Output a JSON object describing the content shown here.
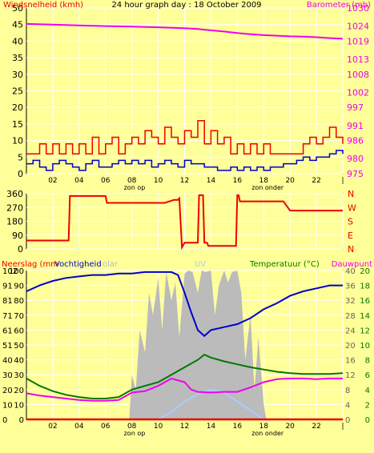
{
  "colors": {
    "background": "#FFFF99",
    "plot_background": "#FFFF99",
    "grid": "#FFFFFF",
    "wind": "#0000CC",
    "gust": "#EE0000",
    "barometer": "#EE00EE",
    "direction": "#EE0000",
    "humidity": "#0000CC",
    "solar": "#BBBBBB",
    "uv": "#AACCFF",
    "temperature": "#007700",
    "dewpoint": "#EE00EE",
    "rain": "#EE0000"
  },
  "chart_data": [
    {
      "id": "wind-baro",
      "type": "line",
      "title": "24 hour graph day : 18 October 2009",
      "left_axis_label": "Windsnelheid (kmh)",
      "right_axis_label": "Barometer (mb)",
      "x_range": [
        0,
        24
      ],
      "x_ticks": [
        "02",
        "04",
        "06",
        "08",
        "10",
        "12",
        "14",
        "16",
        "18",
        "20",
        "22",
        "|"
      ],
      "x_annotations": [
        {
          "label": "zon op",
          "x": 8.2
        },
        {
          "label": "zon onder",
          "x": 18.3
        }
      ],
      "left_range": [
        0,
        50
      ],
      "left_ticks": [
        0,
        5,
        10,
        15,
        20,
        25,
        30,
        35,
        40,
        45,
        50
      ],
      "right_range": [
        975,
        1030
      ],
      "right_ticks": [
        975,
        980,
        986,
        991,
        997,
        1002,
        1008,
        1013,
        1019,
        1024,
        1030
      ],
      "series": [
        {
          "key": "baro",
          "axis": "right",
          "x": [
            0,
            2,
            4,
            6,
            8,
            10,
            12,
            13,
            14,
            15,
            16,
            17,
            18,
            19,
            20,
            21,
            22,
            23,
            24
          ],
          "values": [
            1024.7,
            1024.5,
            1024.2,
            1024.0,
            1023.8,
            1023.6,
            1023.3,
            1023.0,
            1022.6,
            1022.2,
            1021.7,
            1021.3,
            1021.0,
            1020.8,
            1020.6,
            1020.5,
            1020.3,
            1020.0,
            1019.8
          ]
        },
        {
          "key": "wind",
          "axis": "left",
          "x": [
            0,
            0.5,
            1,
            1.5,
            2,
            2.5,
            3,
            3.5,
            4,
            4.5,
            5,
            5.5,
            6,
            6.5,
            7,
            7.5,
            8,
            8.5,
            9,
            9.5,
            10,
            10.5,
            11,
            11.5,
            12,
            12.5,
            13,
            13.5,
            14,
            14.5,
            15,
            15.5,
            16,
            16.5,
            17,
            17.5,
            18,
            18.5,
            19,
            19.5,
            20,
            20.5,
            21,
            21.5,
            22,
            22.5,
            23,
            23.5,
            24
          ],
          "values": [
            3,
            4,
            2,
            1,
            3,
            4,
            3,
            2,
            1,
            3,
            4,
            2,
            2,
            3,
            4,
            3,
            4,
            3,
            4,
            2,
            3,
            4,
            3,
            2,
            4,
            3,
            3,
            2,
            2,
            1,
            1,
            2,
            1,
            2,
            1,
            2,
            1,
            2,
            2,
            3,
            3,
            4,
            5,
            4,
            5,
            5,
            6,
            7,
            6
          ]
        },
        {
          "key": "gust",
          "axis": "left",
          "x": [
            0,
            0.5,
            1,
            1.5,
            2,
            2.5,
            3,
            3.5,
            4,
            4.5,
            5,
            5.5,
            6,
            6.5,
            7,
            7.5,
            8,
            8.5,
            9,
            9.5,
            10,
            10.5,
            11,
            11.5,
            12,
            12.5,
            13,
            13.5,
            14,
            14.5,
            15,
            15.5,
            16,
            16.5,
            17,
            17.5,
            18,
            18.5,
            19,
            19.5,
            20,
            20.5,
            21,
            21.5,
            22,
            22.5,
            23,
            23.5,
            24
          ],
          "values": [
            6,
            6,
            9,
            6,
            9,
            6,
            9,
            6,
            9,
            6,
            11,
            6,
            9,
            11,
            6,
            9,
            11,
            9,
            13,
            11,
            9,
            14,
            11,
            9,
            13,
            11,
            16,
            9,
            13,
            9,
            11,
            6,
            9,
            6,
            9,
            6,
            9,
            6,
            6,
            6,
            6,
            6,
            9,
            11,
            9,
            11,
            14,
            11,
            9
          ]
        }
      ]
    },
    {
      "id": "direction",
      "type": "line",
      "x_range": [
        0,
        24
      ],
      "left_range": [
        0,
        360
      ],
      "left_ticks": [
        0,
        90,
        180,
        270,
        360
      ],
      "right_labels": [
        "N",
        "W",
        "S",
        "E",
        "N"
      ],
      "series": [
        {
          "key": "dir",
          "x": [
            0,
            3.2,
            3.3,
            6,
            6.1,
            10.5,
            11.2,
            11.5,
            11.6,
            11.8,
            12,
            13,
            13.1,
            13.4,
            13.5,
            13.7,
            13.8,
            15.9,
            16,
            16.1,
            16.2,
            19.5,
            20,
            24
          ],
          "values": [
            55,
            55,
            345,
            345,
            300,
            300,
            320,
            320,
            330,
            10,
            40,
            40,
            350,
            350,
            40,
            40,
            20,
            20,
            350,
            350,
            310,
            310,
            250,
            250
          ]
        }
      ]
    },
    {
      "id": "rain-hum-temp",
      "type": "line",
      "left_axis_label": "Neerslag (mm",
      "humidity_label": "Vochtigheid",
      "solar_label": "olar",
      "uv_label": "UV",
      "temp_label": "Temperatuur (°C)",
      "dew_label": "Dauwpunt",
      "x_range": [
        0,
        24
      ],
      "rain_ticks": [
        0,
        10,
        20,
        30,
        40,
        51,
        61,
        71,
        81,
        91,
        102
      ],
      "hum_ticks": [
        0,
        10,
        20,
        30,
        40,
        50,
        60,
        70,
        80,
        90,
        100
      ],
      "uv_ticks": [
        0,
        4,
        8,
        12,
        16,
        20,
        24,
        28,
        32,
        36,
        40
      ],
      "temp_ticks": [
        0,
        2,
        4,
        6,
        8,
        10,
        12,
        14,
        16,
        18,
        20
      ],
      "series": [
        {
          "key": "humidity",
          "axis": "hum",
          "x": [
            0,
            1,
            2,
            3,
            4,
            5,
            6,
            7,
            8,
            9,
            10,
            11,
            11.5,
            12,
            12.5,
            13,
            13.5,
            14,
            15,
            16,
            17,
            18,
            19,
            20,
            21,
            22,
            23,
            24
          ],
          "values": [
            86,
            90,
            93,
            95,
            96,
            97,
            97,
            98,
            98,
            99,
            99,
            99,
            97,
            85,
            72,
            60,
            56,
            60,
            62,
            64,
            68,
            74,
            78,
            83,
            86,
            88,
            90,
            90
          ]
        },
        {
          "key": "solar",
          "axis": "hum",
          "x": [
            7.8,
            8,
            8.3,
            8.6,
            9,
            9.3,
            9.6,
            10,
            10.3,
            10.6,
            11,
            11.3,
            11.6,
            12,
            12.3,
            12.6,
            13,
            13.3,
            13.6,
            14,
            14.3,
            14.6,
            15,
            15.3,
            15.6,
            16,
            16.3,
            16.6,
            17,
            17.3,
            17.6,
            18,
            18.2
          ],
          "values": [
            0,
            30,
            20,
            60,
            45,
            85,
            70,
            95,
            60,
            99,
            80,
            92,
            55,
            98,
            100,
            99,
            85,
            100,
            99,
            100,
            70,
            90,
            100,
            92,
            99,
            100,
            85,
            40,
            70,
            20,
            55,
            10,
            0
          ]
        },
        {
          "key": "uv",
          "axis": "hum",
          "x": [
            10,
            11,
            12,
            13,
            14,
            15,
            16,
            17,
            18
          ],
          "values": [
            0,
            5,
            12,
            17,
            20,
            18,
            12,
            6,
            0
          ]
        },
        {
          "key": "temp",
          "axis": "temp",
          "x": [
            0,
            1,
            2,
            3,
            4,
            5,
            6,
            7,
            8,
            9,
            10,
            11,
            12,
            13,
            13.5,
            14,
            15,
            16,
            17,
            18,
            19,
            20,
            21,
            22,
            23,
            24
          ],
          "values": [
            5.5,
            4.5,
            3.8,
            3.3,
            3,
            2.8,
            2.8,
            3,
            4,
            4.5,
            5,
            6,
            7,
            8,
            8.7,
            8.3,
            7.8,
            7.4,
            7,
            6.7,
            6.4,
            6.2,
            6.1,
            6.1,
            6.1,
            6.2
          ]
        },
        {
          "key": "dew",
          "axis": "temp",
          "x": [
            0,
            1,
            2,
            3,
            4,
            5,
            6,
            7,
            8,
            9,
            10,
            11,
            12,
            12.5,
            13,
            14,
            15,
            16,
            17,
            18,
            19,
            20,
            21,
            22,
            23,
            24
          ],
          "values": [
            3.5,
            3.2,
            3,
            2.8,
            2.6,
            2.5,
            2.5,
            2.6,
            3.6,
            3.8,
            4.5,
            5.5,
            5,
            4,
            3.7,
            3.6,
            3.7,
            3.7,
            4.3,
            5,
            5.4,
            5.5,
            5.5,
            5.4,
            5.5,
            5.5
          ]
        },
        {
          "key": "rain",
          "axis": "rain",
          "x": [
            0,
            24
          ],
          "values": [
            0,
            0
          ]
        }
      ]
    }
  ]
}
